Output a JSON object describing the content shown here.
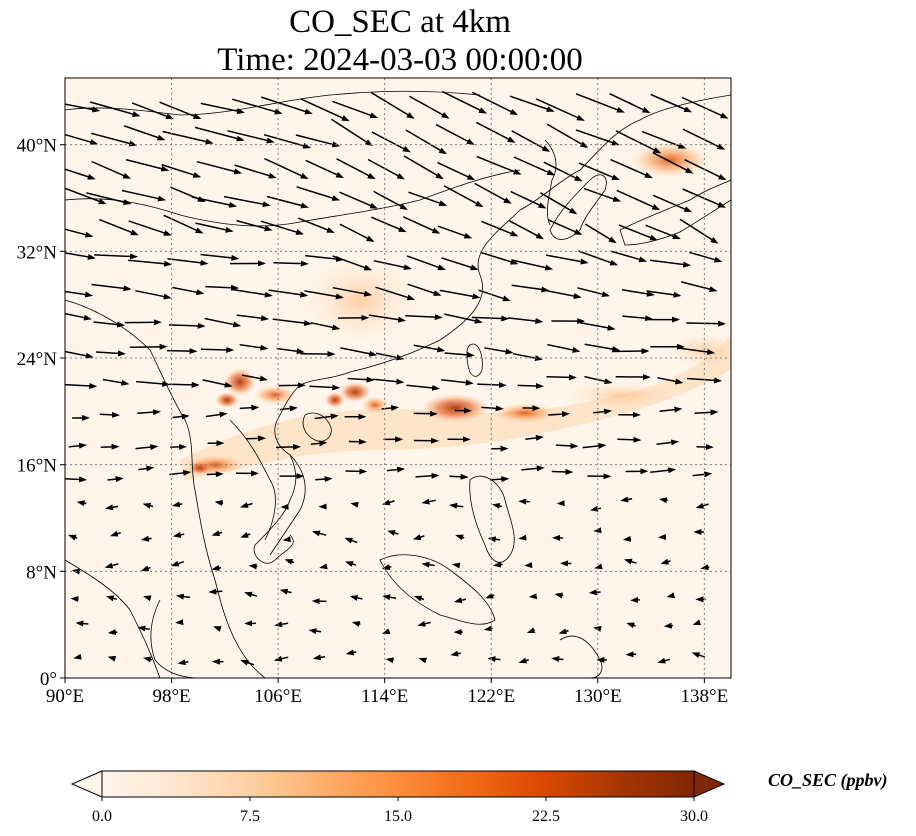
{
  "title": "CO_SEC at 4km",
  "subtitle": "Time: 2024-03-03 00:00:00",
  "map": {
    "lon_range": [
      90,
      140
    ],
    "lat_range": [
      0,
      45
    ],
    "lon_ticks": [
      {
        "value": 90,
        "label": "90°E"
      },
      {
        "value": 98,
        "label": "98°E"
      },
      {
        "value": 106,
        "label": "106°E"
      },
      {
        "value": 114,
        "label": "114°E"
      },
      {
        "value": 122,
        "label": "122°E"
      },
      {
        "value": 130,
        "label": "130°E"
      },
      {
        "value": 138,
        "label": "138°E"
      }
    ],
    "lat_ticks": [
      {
        "value": 0,
        "label": "0°"
      },
      {
        "value": 8,
        "label": "8°N"
      },
      {
        "value": 16,
        "label": "16°N"
      },
      {
        "value": 24,
        "label": "24°N"
      },
      {
        "value": 32,
        "label": "32°N"
      },
      {
        "value": 40,
        "label": "40°N"
      }
    ],
    "gridlines": "dotted",
    "colors": {
      "background": "#fff5ea",
      "coast": "#000000",
      "grid": "#808080"
    }
  },
  "colorbar": {
    "label": "CO_SEC (ppbv)",
    "min": 0,
    "max": 30,
    "ticks": [
      "0.0",
      "7.5",
      "15.0",
      "22.5",
      "30.0"
    ],
    "colormap": [
      "#fff5eb",
      "#fee6ce",
      "#fdd0a2",
      "#fdae6b",
      "#fd8d3c",
      "#f16913",
      "#d94801",
      "#a63603",
      "#7f2704"
    ],
    "extend": "both"
  }
}
